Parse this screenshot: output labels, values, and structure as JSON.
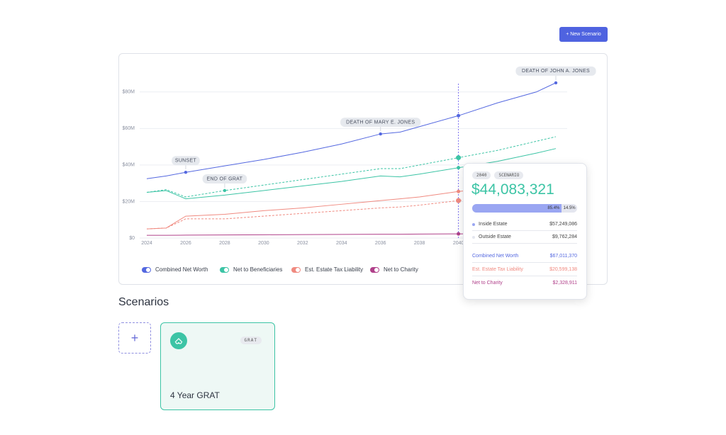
{
  "header": {
    "button": "+ New Scenario"
  },
  "chart_data": {
    "type": "line",
    "x": [
      2024,
      2025,
      2026,
      2028,
      2030,
      2032,
      2034,
      2036,
      2037,
      2038,
      2040,
      2042,
      2044,
      2045
    ],
    "series": [
      {
        "name": "Combined Net Worth",
        "color": "#5468e0",
        "values": [
          32.5,
          34,
          36,
          39.5,
          43,
          47,
          51.5,
          57,
          58,
          61,
          67,
          74,
          80,
          85
        ]
      },
      {
        "name": "Net to Beneficiaries",
        "color": "#3cc4a5",
        "values": [
          25,
          26,
          21.5,
          23.5,
          26,
          28.5,
          31,
          34,
          33.5,
          35,
          38.5,
          42,
          46.5,
          49
        ],
        "scenario_values": [
          25,
          26.5,
          22.5,
          26,
          29,
          32,
          35,
          38,
          38,
          40,
          44,
          48,
          53,
          55.5
        ]
      },
      {
        "name": "Est. Estate Tax Liability",
        "color": "#f08a80",
        "values": [
          5,
          5.5,
          12,
          13,
          15,
          16.5,
          18.5,
          20.5,
          21.5,
          22.5,
          25.5,
          27.5,
          29.5,
          30.5
        ],
        "scenario_values": [
          5,
          5.5,
          10.5,
          10.5,
          12,
          13.5,
          15,
          16.5,
          17,
          18,
          20.5,
          22,
          23.5,
          24.5
        ]
      },
      {
        "name": "Net to Charity",
        "color": "#b0408a",
        "values": [
          1.5,
          1.5,
          1.6,
          1.7,
          1.8,
          1.9,
          2,
          2.1,
          2.1,
          2.2,
          2.3,
          2.4,
          2.5,
          2.5
        ]
      }
    ],
    "xlim": [
      2024,
      2045
    ],
    "xticks": [
      2024,
      2026,
      2028,
      2030,
      2032,
      2034,
      2036,
      2038,
      2040
    ],
    "ylim": [
      0,
      90
    ],
    "yticks": [
      {
        "value": 0,
        "label": "$0"
      },
      {
        "value": 20,
        "label": "$20M"
      },
      {
        "value": 40,
        "label": "$40M"
      },
      {
        "value": 60,
        "label": "$60M"
      },
      {
        "value": 80,
        "label": "$80M"
      }
    ],
    "grid": true,
    "annotations": [
      {
        "label": "SUNSET",
        "x": 2026,
        "y": 36,
        "color": "#5468e0"
      },
      {
        "label": "END OF GRAT",
        "x": 2028,
        "y": 26,
        "color": "#3cc4a5"
      },
      {
        "label": "DEATH OF MARY E. JONES",
        "x": 2036,
        "y": 57,
        "color": "#5468e0"
      },
      {
        "label": "DEATH OF JOHN A. JONES",
        "x": 2045,
        "y": 85,
        "color": "#5468e0"
      }
    ],
    "cursor_x": 2040,
    "cursor_index": 10
  },
  "tooltip": {
    "year": "2040",
    "tag": "SCENARIO",
    "amount": "$44,083,321",
    "split": [
      {
        "value": 85.4,
        "label": "85.4%"
      },
      {
        "value": 14.5,
        "label": "14.5%"
      }
    ],
    "estate": [
      {
        "label": "Inside Estate",
        "value": "$57,249,086"
      },
      {
        "label": "Outside Estate",
        "value": "$9,762,284"
      }
    ],
    "totals": [
      {
        "label": "Combined Net Worth",
        "value": "$67,011,370",
        "color": "#5468e0"
      },
      {
        "label": "Est. Estate Tax Liability",
        "value": "$20,599,138",
        "color": "#f08a80"
      },
      {
        "label": "Net to Charity",
        "value": "$2,328,911",
        "color": "#b0408a"
      }
    ]
  },
  "scenarios": {
    "title": "Scenarios",
    "cards": [
      {
        "tag": "GRAT",
        "name": "4 Year GRAT"
      }
    ]
  }
}
